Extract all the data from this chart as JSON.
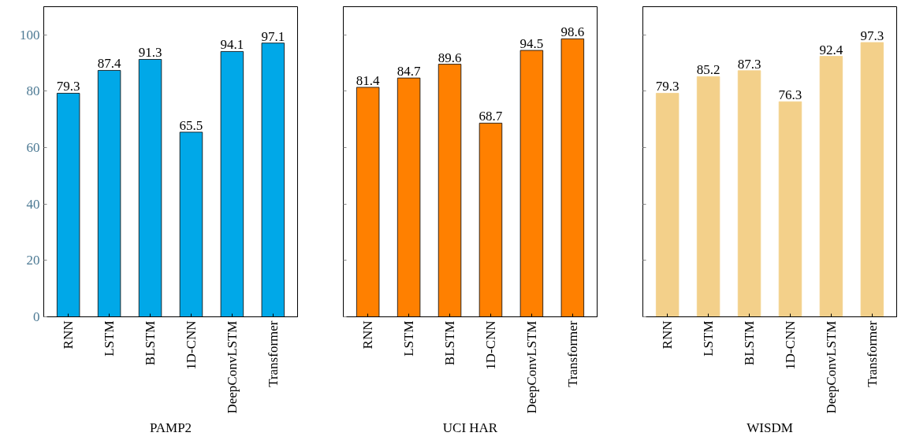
{
  "chart_data": [
    {
      "type": "bar",
      "xlabel": "PAMP2",
      "categories": [
        "RNN",
        "LSTM",
        "BLSTM",
        "1D-CNN",
        "DeepConvLSTM",
        "Transformer"
      ],
      "values": [
        79.3,
        87.4,
        91.3,
        65.5,
        94.1,
        97.1
      ],
      "color": "#00a8e8",
      "ylim": [
        0,
        110
      ],
      "yticks": [
        0,
        20,
        40,
        60,
        80,
        100
      ],
      "data_labels": true,
      "grid": false
    },
    {
      "type": "bar",
      "xlabel": "UCI HAR",
      "categories": [
        "RNN",
        "LSTM",
        "BLSTM",
        "1D-CNN",
        "DeepConvLSTM",
        "Transformer"
      ],
      "values": [
        81.4,
        84.7,
        89.6,
        68.7,
        94.5,
        98.6
      ],
      "color": "#ff8000",
      "ylim": [
        0,
        110
      ],
      "yticks": [
        0,
        20,
        40,
        60,
        80,
        100
      ],
      "data_labels": true,
      "tick_labels": "x",
      "grid": false
    },
    {
      "type": "bar",
      "xlabel": "WISDM",
      "categories": [
        "RNN",
        "LSTM",
        "BLSTM",
        "1D-CNN",
        "DeepConvLSTM",
        "Transformer"
      ],
      "values": [
        79.3,
        85.2,
        87.3,
        76.3,
        92.4,
        97.3
      ],
      "color": "#f3d08a",
      "ylim": [
        0,
        110
      ],
      "yticks": [
        0,
        20,
        40,
        60,
        80,
        100
      ],
      "data_labels": true,
      "tick_labels": "x",
      "grid": false
    }
  ]
}
